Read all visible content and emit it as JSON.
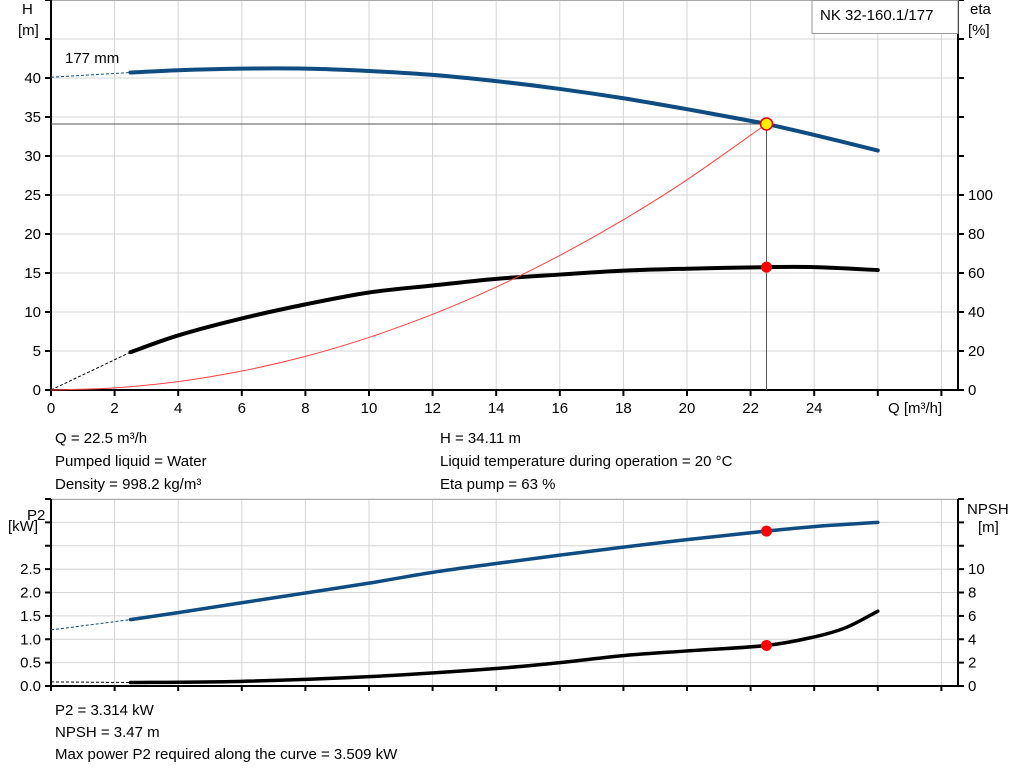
{
  "chart_data": [
    {
      "type": "line",
      "title": "NK 32-160.1/177",
      "xlabel": "Q [m³/h]",
      "ylabel": "H [m]",
      "y2label": "eta [%]",
      "ylabel_parts": [
        "H",
        "[m]"
      ],
      "y2label_parts": [
        "eta",
        "[%]"
      ],
      "xlim": [
        0,
        28.5
      ],
      "ylim": [
        0,
        50
      ],
      "y2lim": [
        0,
        200
      ],
      "grid": true,
      "x_ticks": [
        "0",
        "2",
        "4",
        "6",
        "8",
        "10",
        "12",
        "14",
        "16",
        "18",
        "20",
        "22",
        "24"
      ],
      "y_ticks": [
        "0",
        "5",
        "10",
        "15",
        "20",
        "25",
        "30",
        "35",
        "40"
      ],
      "y2_ticks": [
        "0",
        "20",
        "40",
        "60",
        "80",
        "100"
      ],
      "impeller_label": "177 mm",
      "series": [
        {
          "role": "head",
          "axis": "left",
          "color": "#0f4c81",
          "x": [
            2.5,
            4,
            6,
            8,
            10,
            12,
            14,
            16,
            18,
            20,
            22,
            22.5,
            24,
            26
          ],
          "y": [
            40.7,
            41.0,
            41.2,
            41.2,
            40.9,
            40.4,
            39.6,
            38.6,
            37.4,
            36.0,
            34.5,
            34.11,
            32.7,
            30.7
          ],
          "extrapolated": {
            "x": [
              0,
              2.5
            ],
            "y": [
              40.1,
              40.7
            ]
          }
        },
        {
          "role": "efficiency",
          "axis": "right",
          "color": "#000000",
          "x": [
            2.5,
            4,
            6,
            8,
            10,
            12,
            14,
            16,
            18,
            20,
            22.5,
            24,
            26
          ],
          "y": [
            19.4,
            28,
            36.7,
            43.9,
            50,
            53.6,
            57,
            59.2,
            61.2,
            62.2,
            63,
            63,
            61.5
          ],
          "extrapolated": {
            "x": [
              0,
              2.5
            ],
            "y": [
              0,
              19.4
            ]
          }
        },
        {
          "role": "system-curve",
          "axis": "left",
          "color": "#ff4040",
          "x": [
            0,
            2,
            4,
            6,
            8,
            10,
            12,
            14,
            16,
            18,
            20,
            22.5
          ],
          "y": [
            0,
            0.27,
            1.08,
            2.43,
            4.31,
            6.74,
            9.7,
            13.2,
            17.25,
            21.83,
            26.95,
            34.11
          ]
        }
      ],
      "duty_point": {
        "Q": 22.5,
        "H": 34.11,
        "eta": 63
      }
    },
    {
      "type": "line",
      "xlim": [
        0,
        28.5
      ],
      "ylabel_parts": [
        "P2",
        "[kW]"
      ],
      "y2label_parts": [
        "NPSH",
        "[m]"
      ],
      "ylim": [
        0,
        4.0
      ],
      "y2lim": [
        0,
        16
      ],
      "grid": true,
      "y_ticks": [
        "0.0",
        "0.5",
        "1.0",
        "1.5",
        "2.0",
        "2.5"
      ],
      "y2_ticks": [
        "0",
        "2",
        "4",
        "6",
        "8",
        "10"
      ],
      "series": [
        {
          "role": "power-P2",
          "axis": "left",
          "color": "#0f4c81",
          "x": [
            2.5,
            4,
            6,
            8,
            10,
            12,
            14,
            16,
            18,
            20,
            22.5,
            24,
            26
          ],
          "y": [
            1.42,
            1.57,
            1.78,
            1.99,
            2.2,
            2.43,
            2.62,
            2.8,
            2.97,
            3.13,
            3.314,
            3.41,
            3.5
          ],
          "extrapolated": {
            "x": [
              0,
              2.5
            ],
            "y": [
              1.2,
              1.42
            ]
          }
        },
        {
          "role": "NPSH",
          "axis": "right",
          "color": "#000000",
          "x": [
            2.5,
            6,
            10,
            14,
            16,
            18,
            20,
            22.5,
            24,
            25,
            26
          ],
          "y": [
            0.3,
            0.4,
            0.8,
            1.5,
            2.0,
            2.6,
            3.0,
            3.47,
            4.2,
            5.0,
            6.4
          ],
          "extrapolated": {
            "x": [
              0,
              2.5
            ],
            "y": [
              0.35,
              0.3
            ]
          }
        }
      ],
      "duty_point": {
        "Q": 22.5,
        "P2": 3.314,
        "NPSH": 3.47
      }
    }
  ],
  "info_top": {
    "q": "Q = 22.5 m³/h",
    "liquid": "Pumped liquid = Water",
    "density": "Density = 998.2 kg/m³",
    "h": "H = 34.11 m",
    "temp": "Liquid temperature during operation = 20 °C",
    "eta": "Eta pump = 63 %"
  },
  "info_bottom": {
    "p2": "P2 = 3.314 kW",
    "npsh": "NPSH = 3.47 m",
    "maxp2": "Max power P2 required along the curve = 3.509 kW"
  }
}
